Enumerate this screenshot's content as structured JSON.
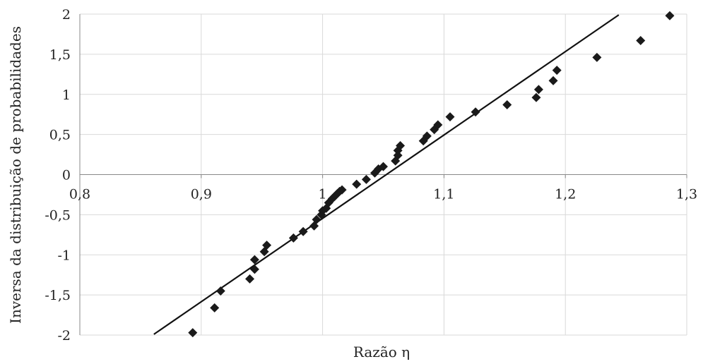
{
  "chart_data": {
    "type": "scatter",
    "title": "",
    "xlabel": "Razão η",
    "ylabel": "Inversa da distribuição de probabilidades",
    "xlim": [
      0.8,
      1.3
    ],
    "ylim": [
      -2,
      2
    ],
    "x_ticks": [
      "0,8",
      "0,9",
      "1",
      "1,1",
      "1,2",
      "1,3"
    ],
    "y_ticks": [
      "2",
      "1,5",
      "1",
      "0,5",
      "0",
      "-0,5",
      "-1",
      "-1,5",
      "-2"
    ],
    "grid": true,
    "legend": "none",
    "colors": {
      "points": "#1a1a1a",
      "line": "#111111",
      "grid": "#d9d9d9",
      "axis": "#888888"
    },
    "series": [
      {
        "type": "scatter",
        "marker": "diamond",
        "points": [
          [
            0.893,
            -1.97
          ],
          [
            0.911,
            -1.66
          ],
          [
            0.916,
            -1.45
          ],
          [
            0.94,
            -1.3
          ],
          [
            0.944,
            -1.18
          ],
          [
            0.944,
            -1.06
          ],
          [
            0.952,
            -0.96
          ],
          [
            0.954,
            -0.88
          ],
          [
            0.976,
            -0.79
          ],
          [
            0.984,
            -0.71
          ],
          [
            0.993,
            -0.64
          ],
          [
            0.995,
            -0.56
          ],
          [
            0.999,
            -0.5
          ],
          [
            1.0,
            -0.45
          ],
          [
            1.003,
            -0.42
          ],
          [
            1.005,
            -0.35
          ],
          [
            1.008,
            -0.3
          ],
          [
            1.01,
            -0.27
          ],
          [
            1.012,
            -0.24
          ],
          [
            1.014,
            -0.21
          ],
          [
            1.016,
            -0.19
          ],
          [
            1.028,
            -0.12
          ],
          [
            1.036,
            -0.06
          ],
          [
            1.043,
            0.02
          ],
          [
            1.046,
            0.07
          ],
          [
            1.05,
            0.1
          ],
          [
            1.06,
            0.17
          ],
          [
            1.062,
            0.24
          ],
          [
            1.062,
            0.3
          ],
          [
            1.064,
            0.36
          ],
          [
            1.083,
            0.42
          ],
          [
            1.086,
            0.48
          ],
          [
            1.092,
            0.56
          ],
          [
            1.095,
            0.62
          ],
          [
            1.105,
            0.72
          ],
          [
            1.126,
            0.78
          ],
          [
            1.152,
            0.87
          ],
          [
            1.176,
            0.96
          ],
          [
            1.178,
            1.06
          ],
          [
            1.19,
            1.17
          ],
          [
            1.193,
            1.3
          ],
          [
            1.226,
            1.46
          ],
          [
            1.262,
            1.67
          ],
          [
            1.286,
            1.98
          ]
        ]
      },
      {
        "type": "line",
        "points": [
          [
            0.861,
            -1.99
          ],
          [
            1.244,
            1.99
          ]
        ]
      }
    ]
  }
}
